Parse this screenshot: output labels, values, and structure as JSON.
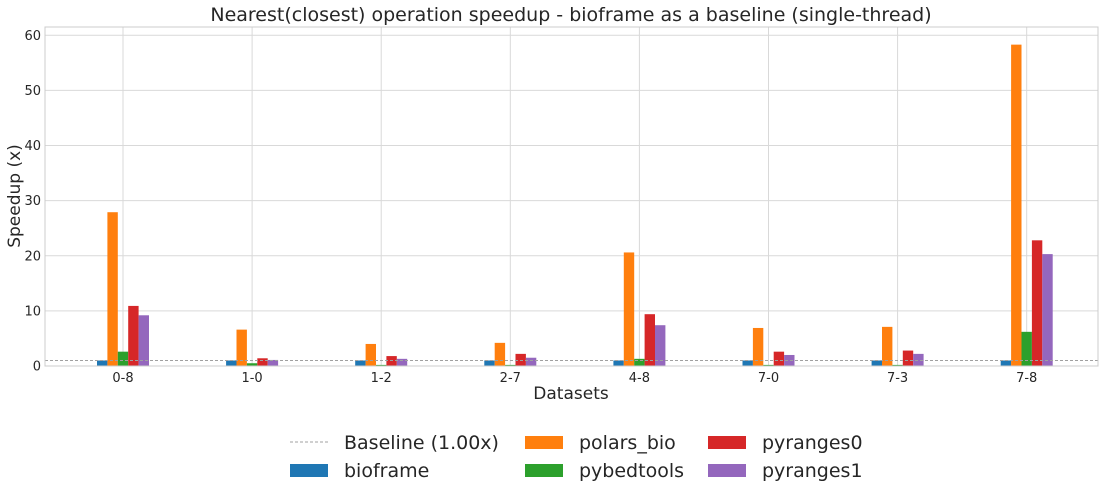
{
  "chart_data": {
    "type": "bar",
    "title": "Nearest(closest) operation speedup - bioframe as a baseline (single-thread)",
    "xlabel": "Datasets",
    "ylabel": "Speedup (x)",
    "ylim": [
      0,
      61.5
    ],
    "yticks": [
      0,
      10,
      20,
      30,
      40,
      50,
      60
    ],
    "grid": true,
    "categories": [
      "0-8",
      "1-0",
      "1-2",
      "2-7",
      "4-8",
      "7-0",
      "7-3",
      "7-8"
    ],
    "series": [
      {
        "name": "bioframe",
        "color": "#1f77b4",
        "values": [
          1.0,
          1.0,
          1.0,
          1.0,
          1.0,
          1.0,
          1.0,
          1.0
        ]
      },
      {
        "name": "polars_bio",
        "color": "#ff7f0e",
        "values": [
          27.9,
          6.6,
          4.0,
          4.2,
          20.6,
          6.9,
          7.1,
          58.3
        ]
      },
      {
        "name": "pybedtools",
        "color": "#2ca02c",
        "values": [
          2.6,
          0.5,
          0.2,
          0.2,
          1.3,
          0.2,
          0.2,
          6.2
        ]
      },
      {
        "name": "pyranges0",
        "color": "#d62728",
        "values": [
          10.9,
          1.4,
          1.8,
          2.2,
          9.4,
          2.6,
          2.8,
          22.8
        ]
      },
      {
        "name": "pyranges1",
        "color": "#9467bd",
        "values": [
          9.2,
          1.1,
          1.3,
          1.5,
          7.4,
          2.0,
          2.2,
          20.3
        ]
      }
    ],
    "baseline": {
      "label": "Baseline (1.00x)",
      "value": 1.0,
      "color": "#a0a0a0"
    },
    "legend_position": "bottom-center"
  }
}
